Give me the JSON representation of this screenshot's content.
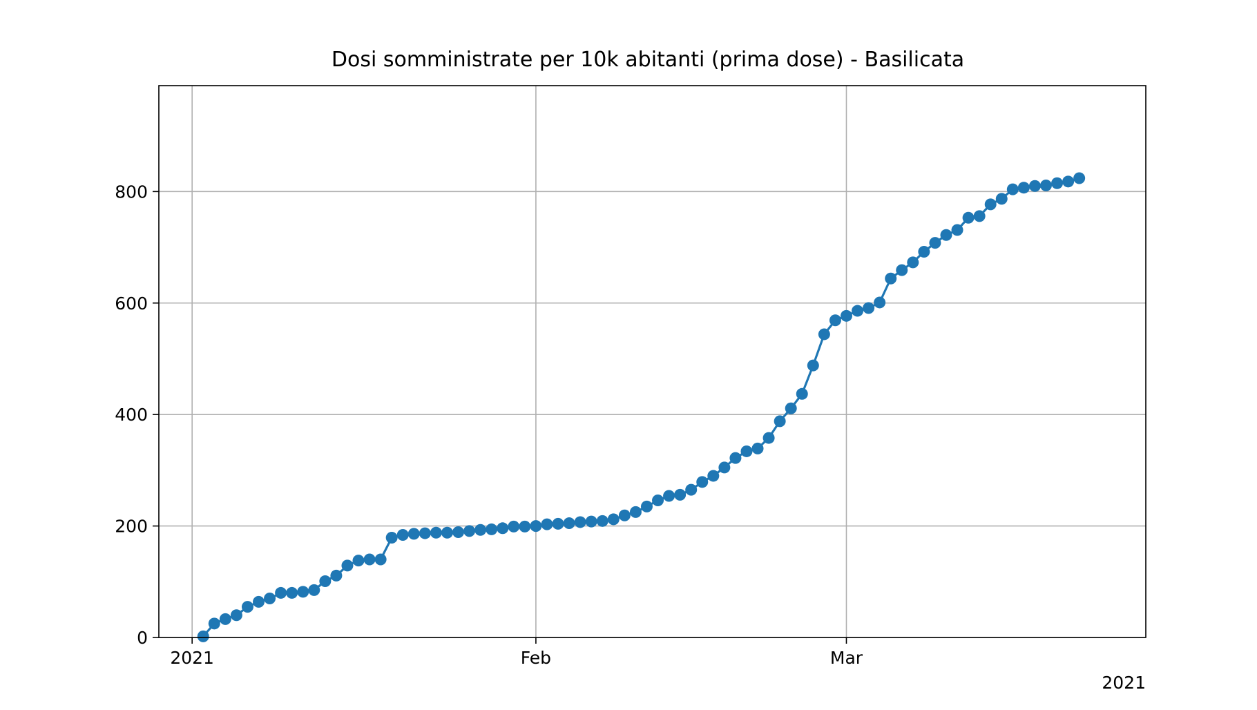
{
  "chart_data": {
    "type": "line",
    "title": "Dosi somministrate per 10k abitanti (prima dose) - Basilicata",
    "xlabel": "",
    "ylabel": "",
    "x_start": "2021-01-02",
    "x_ticks": [
      {
        "date": "2021-01-01",
        "label": "2021"
      },
      {
        "date": "2021-02-01",
        "label": "Feb"
      },
      {
        "date": "2021-03-01",
        "label": "Mar"
      }
    ],
    "x_offset_label": "2021",
    "xlim": [
      "2020-12-29",
      "2021-03-28"
    ],
    "ylim": [
      0,
      990
    ],
    "y_ticks": [
      0,
      200,
      400,
      600,
      800
    ],
    "grid": true,
    "legend": "none",
    "series": [
      {
        "color": "#1f77b4",
        "marker": "circle",
        "points": [
          [
            "2021-01-02",
            2
          ],
          [
            "2021-01-03",
            25
          ],
          [
            "2021-01-04",
            33
          ],
          [
            "2021-01-05",
            40
          ],
          [
            "2021-01-06",
            55
          ],
          [
            "2021-01-07",
            64
          ],
          [
            "2021-01-08",
            70
          ],
          [
            "2021-01-09",
            80
          ],
          [
            "2021-01-10",
            80
          ],
          [
            "2021-01-11",
            82
          ],
          [
            "2021-01-12",
            85
          ],
          [
            "2021-01-13",
            101
          ],
          [
            "2021-01-14",
            111
          ],
          [
            "2021-01-15",
            129
          ],
          [
            "2021-01-16",
            138
          ],
          [
            "2021-01-17",
            140
          ],
          [
            "2021-01-18",
            140
          ],
          [
            "2021-01-19",
            179
          ],
          [
            "2021-01-20",
            184
          ],
          [
            "2021-01-21",
            186
          ],
          [
            "2021-01-22",
            187
          ],
          [
            "2021-01-23",
            188
          ],
          [
            "2021-01-24",
            188
          ],
          [
            "2021-01-25",
            189
          ],
          [
            "2021-01-26",
            191
          ],
          [
            "2021-01-27",
            193
          ],
          [
            "2021-01-28",
            194
          ],
          [
            "2021-01-29",
            196
          ],
          [
            "2021-01-30",
            199
          ],
          [
            "2021-01-31",
            199
          ],
          [
            "2021-02-01",
            200
          ],
          [
            "2021-02-02",
            203
          ],
          [
            "2021-02-03",
            204
          ],
          [
            "2021-02-04",
            205
          ],
          [
            "2021-02-05",
            207
          ],
          [
            "2021-02-06",
            208
          ],
          [
            "2021-02-07",
            209
          ],
          [
            "2021-02-08",
            212
          ],
          [
            "2021-02-09",
            219
          ],
          [
            "2021-02-10",
            225
          ],
          [
            "2021-02-11",
            235
          ],
          [
            "2021-02-12",
            246
          ],
          [
            "2021-02-13",
            254
          ],
          [
            "2021-02-14",
            256
          ],
          [
            "2021-02-15",
            265
          ],
          [
            "2021-02-16",
            279
          ],
          [
            "2021-02-17",
            290
          ],
          [
            "2021-02-18",
            305
          ],
          [
            "2021-02-19",
            322
          ],
          [
            "2021-02-20",
            334
          ],
          [
            "2021-02-21",
            339
          ],
          [
            "2021-02-22",
            358
          ],
          [
            "2021-02-23",
            388
          ],
          [
            "2021-02-24",
            411
          ],
          [
            "2021-02-25",
            437
          ],
          [
            "2021-02-26",
            488
          ],
          [
            "2021-02-27",
            544
          ],
          [
            "2021-02-28",
            569
          ],
          [
            "2021-03-01",
            577
          ],
          [
            "2021-03-02",
            586
          ],
          [
            "2021-03-03",
            591
          ],
          [
            "2021-03-04",
            601
          ],
          [
            "2021-03-05",
            644
          ],
          [
            "2021-03-06",
            659
          ],
          [
            "2021-03-07",
            673
          ],
          [
            "2021-03-08",
            692
          ],
          [
            "2021-03-09",
            708
          ],
          [
            "2021-03-10",
            722
          ],
          [
            "2021-03-11",
            731
          ],
          [
            "2021-03-12",
            753
          ],
          [
            "2021-03-13",
            756
          ],
          [
            "2021-03-14",
            777
          ],
          [
            "2021-03-15",
            787
          ],
          [
            "2021-03-16",
            804
          ],
          [
            "2021-03-17",
            807
          ],
          [
            "2021-03-18",
            810
          ],
          [
            "2021-03-19",
            811
          ],
          [
            "2021-03-20",
            815
          ],
          [
            "2021-03-21",
            818
          ],
          [
            "2021-03-22",
            824
          ]
        ]
      }
    ]
  }
}
